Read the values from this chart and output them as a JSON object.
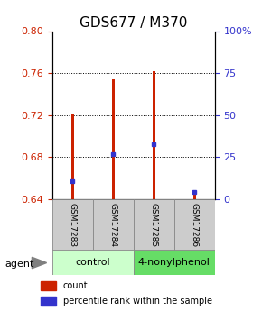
{
  "title": "GDS677 / M370",
  "samples": [
    "GSM17283",
    "GSM17284",
    "GSM17285",
    "GSM17286"
  ],
  "baseline": 0.64,
  "bar_tops": [
    0.721,
    0.754,
    0.762,
    0.647
  ],
  "blue_values": [
    0.657,
    0.683,
    0.692,
    0.647
  ],
  "ylim_left": [
    0.64,
    0.8
  ],
  "ylim_right": [
    0,
    100
  ],
  "yticks_left": [
    0.64,
    0.68,
    0.72,
    0.76,
    0.8
  ],
  "yticks_right": [
    0,
    25,
    50,
    75,
    100
  ],
  "bar_color": "#cc2200",
  "blue_color": "#3333cc",
  "bar_width": 0.08,
  "groups": [
    {
      "label": "control",
      "samples": [
        0,
        1
      ],
      "color": "#ccffcc"
    },
    {
      "label": "4-nonylphenol",
      "samples": [
        2,
        3
      ],
      "color": "#66dd66"
    }
  ],
  "agent_label": "agent",
  "legend_items": [
    {
      "color": "#cc2200",
      "label": "count"
    },
    {
      "color": "#3333cc",
      "label": "percentile rank within the sample"
    }
  ],
  "grid_color": "#000000",
  "label_box_color": "#cccccc",
  "title_fontsize": 11,
  "tick_fontsize": 8,
  "label_fontsize": 8
}
